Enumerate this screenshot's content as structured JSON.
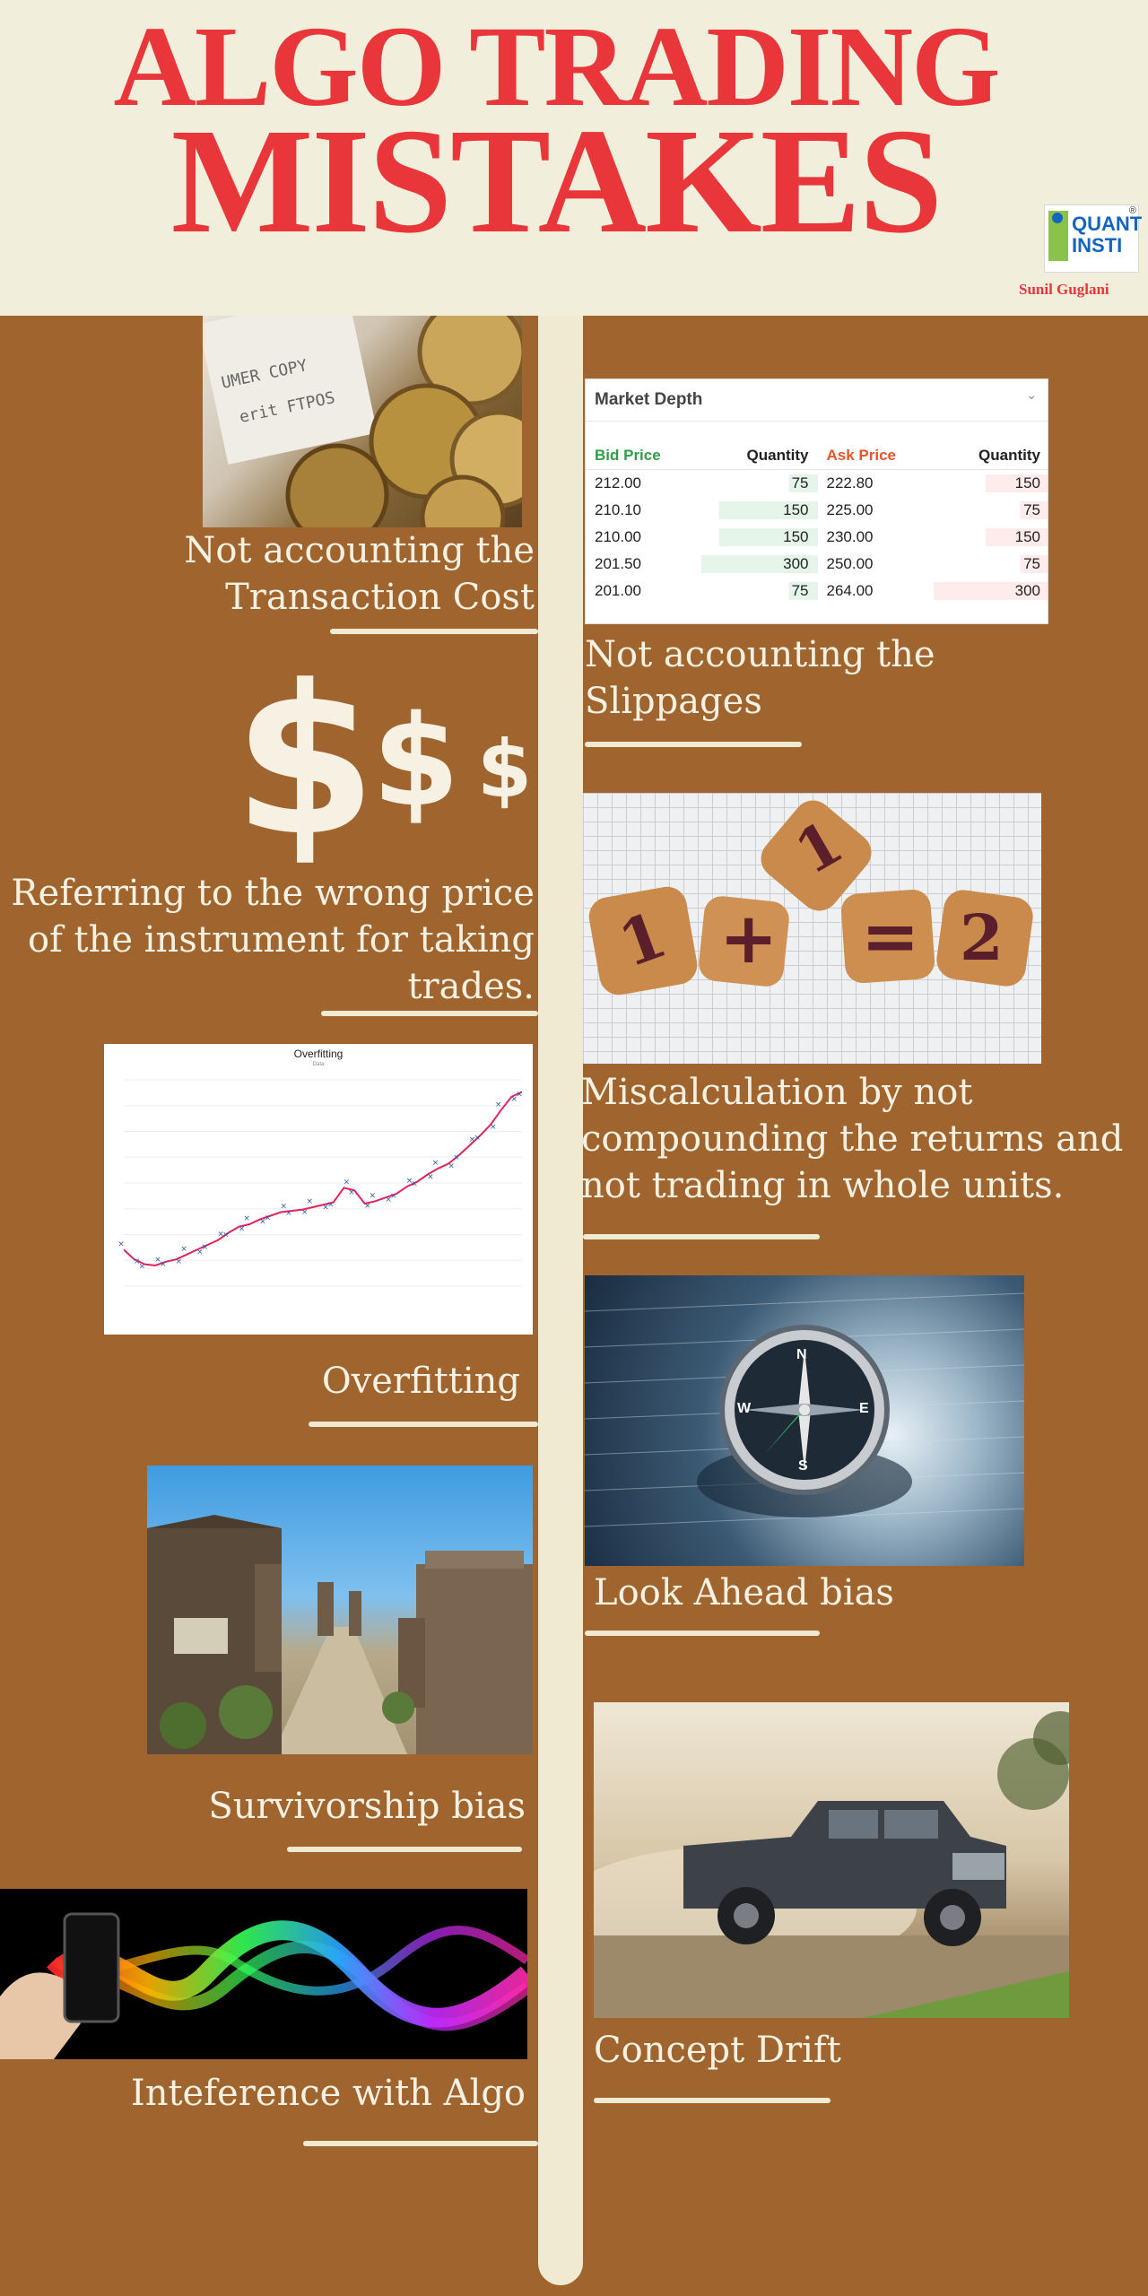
{
  "header": {
    "title_line1": "ALGO TRADING",
    "title_line2": "MISTAKES",
    "logo_line1": "QUANT",
    "logo_line2": "INSTI",
    "logo_mark": "®",
    "author": "Sunil Guglani"
  },
  "mistakes": {
    "transaction_cost": "Not accounting the Transaction Cost",
    "slippages": "Not accounting the Slippages",
    "wrong_price": "Referring to the wrong price of the instrument for taking trades.",
    "miscalculation": "Miscalculation by not compounding the returns and not trading in whole units.",
    "overfitting": "Overfitting",
    "look_ahead": "Look Ahead bias",
    "survivorship": "Survivorship bias",
    "concept_drift": "Concept Drift",
    "interference": "Inteference with Algo"
  },
  "receipt_text": [
    "UMER COPY",
    "erit FTPOS"
  ],
  "dollar_glyphs": [
    "$",
    "$",
    "$"
  ],
  "market_depth": {
    "title": "Market Depth",
    "headers": [
      "Bid Price",
      "Quantity",
      "Ask Price",
      "Quantity"
    ],
    "rows": [
      [
        "212.00",
        "75",
        "222.80",
        "150"
      ],
      [
        "210.10",
        "150",
        "225.00",
        "75"
      ],
      [
        "210.00",
        "150",
        "230.00",
        "150"
      ],
      [
        "201.50",
        "300",
        "250.00",
        "75"
      ],
      [
        "201.00",
        "75",
        "264.00",
        "300"
      ]
    ],
    "bid_color": "#2e9e48",
    "ask_color": "#e8532a"
  },
  "cookies": [
    "1",
    "+",
    "1",
    "=",
    "2"
  ],
  "overfit_chart": {
    "title": "Overfitting",
    "subtitle": "Data",
    "values": [
      3,
      2.2,
      1.8,
      1.7,
      2,
      2.2,
      2.6,
      3,
      3.4,
      3.8,
      4.4,
      4.9,
      5.1,
      5.5,
      5.8,
      6.1,
      6.2,
      6.3,
      6.5,
      6.7,
      6.9,
      8.1,
      7.9,
      6.8,
      7,
      7.3,
      7.6,
      8.2,
      8.6,
      9.2,
      9.7,
      10.1,
      10.8,
      11.6,
      12.4,
      13.3,
      14.5,
      15.6,
      16
    ]
  },
  "compass_letters": [
    "N",
    "E",
    "S",
    "W"
  ],
  "colors": {
    "background": "#a0642e",
    "header_bg": "#f1efdc",
    "title_red": "#e8363a",
    "spine": "#f1ead2",
    "text": "#f6f1e2"
  }
}
